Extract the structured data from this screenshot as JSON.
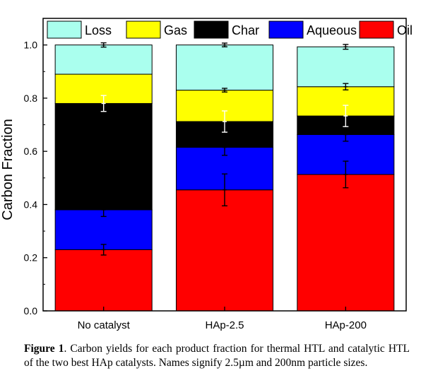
{
  "chart_data": {
    "type": "bar",
    "stacked": true,
    "ylabel": "Carbon Fraction",
    "xlabel": "",
    "ylim": [
      0,
      1.1
    ],
    "yticks": [
      0.0,
      0.2,
      0.4,
      0.6,
      0.8,
      1.0
    ],
    "ytick_labels": [
      "0.0",
      "0.2",
      "0.4",
      "0.6",
      "0.8",
      "1.0"
    ],
    "categories": [
      "No catalyst",
      "HAp-2.5",
      "HAp-200"
    ],
    "legend_position": "top",
    "series": [
      {
        "name": "Oil",
        "color": "#ff0000",
        "values": [
          0.23,
          0.455,
          0.513
        ],
        "error": [
          0.02,
          0.06,
          0.05
        ],
        "error_color": "#000000"
      },
      {
        "name": "Aqueous",
        "color": "#0000ff",
        "values": [
          0.15,
          0.16,
          0.15
        ],
        "error": [
          0.025,
          0.03,
          0.025
        ],
        "error_color": "#000000"
      },
      {
        "name": "Char",
        "color": "#000000",
        "values": [
          0.4,
          0.097,
          0.07
        ],
        "error": [
          0.03,
          0.04,
          0.04
        ],
        "error_color": "#ffffff"
      },
      {
        "name": "Gas",
        "color": "#ffff00",
        "values": [
          0.11,
          0.118,
          0.11
        ],
        "error": [
          0.0,
          0.007,
          0.012
        ],
        "error_color": "#000000"
      },
      {
        "name": "Loss",
        "color": "#aaffee",
        "values": [
          0.11,
          0.17,
          0.15
        ],
        "error": [
          0.008,
          0.007,
          0.009
        ],
        "error_color": "#000000"
      }
    ],
    "legend_order": [
      "Loss",
      "Gas",
      "Char",
      "Aqueous",
      "Oil"
    ]
  },
  "caption": {
    "label": "Figure 1",
    "text": ". Carbon yields for each product fraction for thermal HTL and catalytic HTL of the two best HAp catalysts. Names signify 2.5µm and 200nm particle sizes."
  }
}
